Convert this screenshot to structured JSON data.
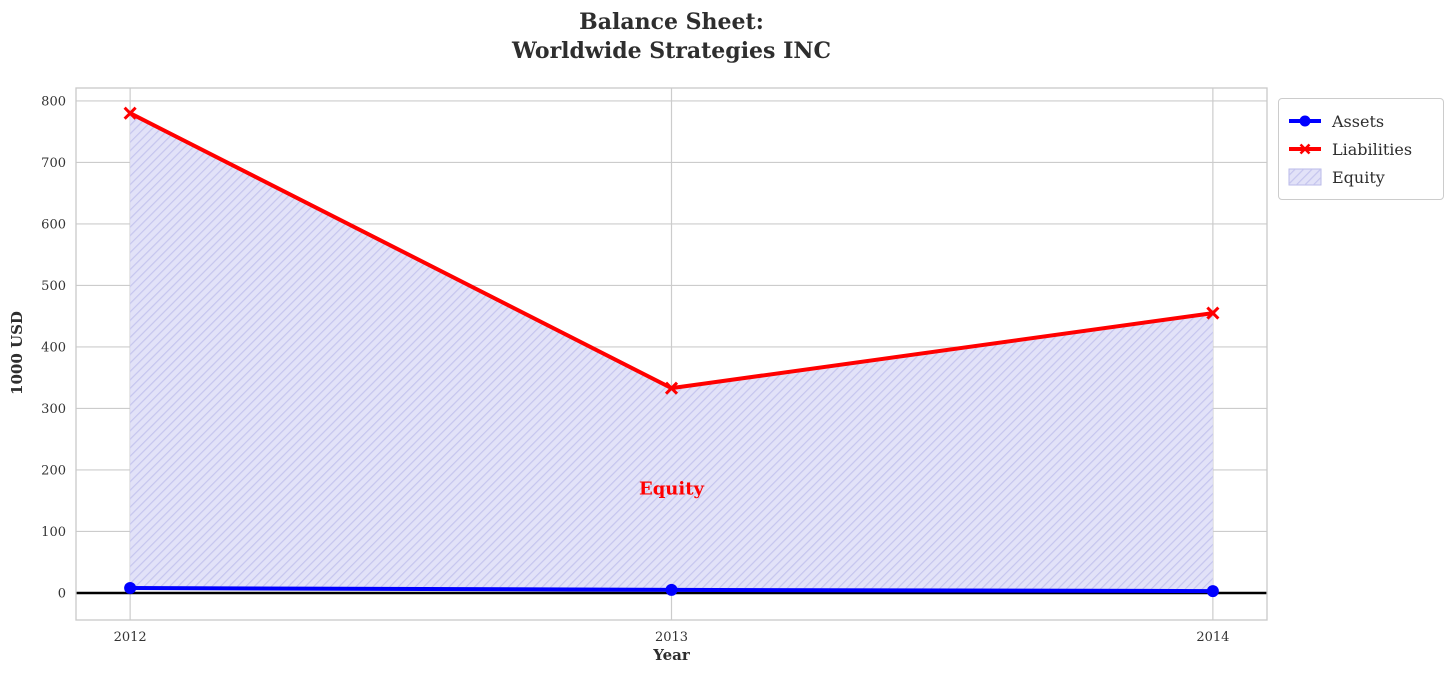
{
  "title": "Balance Sheet:\nWorldwide Strategies INC",
  "chart_data": {
    "type": "area",
    "x": [
      2012,
      2013,
      2014
    ],
    "categories": [
      "2012",
      "2013",
      "2014"
    ],
    "series": [
      {
        "name": "Assets",
        "color": "#0000ff",
        "marker": "circle",
        "values": [
          8,
          5,
          3
        ]
      },
      {
        "name": "Liabilities",
        "color": "#ff0000",
        "marker": "x",
        "values": [
          780,
          333,
          455
        ]
      }
    ],
    "fill_between": {
      "name": "Equity",
      "between": [
        "Assets",
        "Liabilities"
      ],
      "fill_color": "#e2e2f8",
      "hatch_color": "#c5c5ee",
      "hatch_style": "diagonal"
    },
    "legend": [
      "Assets",
      "Liabilities",
      "Equity"
    ],
    "legend_position": "upper right, outside axes",
    "annotation": {
      "text": "Equity",
      "x": 2013,
      "y": 170,
      "color": "#ff0000"
    },
    "title": "Balance Sheet:\nWorldwide Strategies INC",
    "xlabel": "Year",
    "ylabel": "1000 USD",
    "xlim": [
      2011.9,
      2014.1
    ],
    "ylim": [
      -44,
      821
    ],
    "yticks": [
      0,
      100,
      200,
      300,
      400,
      500,
      600,
      700,
      800
    ],
    "grid": true,
    "zero_line": true,
    "grid_color": "#cccccc",
    "zero_line_color": "#000000",
    "text_color": "#2e2e2e"
  }
}
